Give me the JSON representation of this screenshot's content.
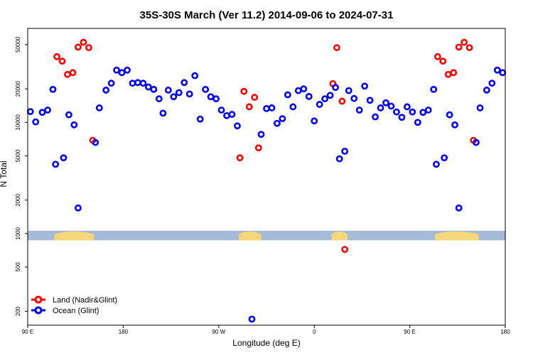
{
  "chart_data": {
    "type": "scatter",
    "title": "35S-30S March (Ver 11.2)   2014-09-06 to 2024-07-31",
    "xlabel": "Longitude (deg E)",
    "ylabel": "N Total",
    "y_scale": "log",
    "xlim": [
      0,
      360
    ],
    "ylim": [
      150,
      70000
    ],
    "x_ticks": [
      {
        "x": 0,
        "label": "90 E"
      },
      {
        "x": 72,
        "label": "180"
      },
      {
        "x": 144,
        "label": "90 W"
      },
      {
        "x": 216,
        "label": "0"
      },
      {
        "x": 288,
        "label": "90 E"
      },
      {
        "x": 360,
        "label": "180"
      }
    ],
    "y_ticks": [
      {
        "y": 200,
        "label": "200"
      },
      {
        "y": 500,
        "label": "500"
      },
      {
        "y": 1000,
        "label": "1000"
      },
      {
        "y": 2000,
        "label": "2000"
      },
      {
        "y": 5000,
        "label": "5000"
      },
      {
        "y": 10000,
        "label": "10000"
      },
      {
        "y": 20000,
        "label": "20000"
      },
      {
        "y": 50000,
        "label": "50000"
      }
    ],
    "map_strip": {
      "y_range": [
        870,
        1060
      ],
      "ocean_color": "#a4bad6",
      "land_color": "#f5d67a",
      "land_segments": [
        [
          20,
          50
        ],
        [
          159,
          176
        ],
        [
          229,
          241
        ],
        [
          307,
          340
        ]
      ]
    },
    "legend": {
      "position": "bottom-left",
      "entries": [
        {
          "label": "Land (Nadir&Glint)",
          "color": "#ff0000"
        },
        {
          "label": "Ocean (Glint)",
          "color": "#0000ff"
        }
      ]
    },
    "series": [
      {
        "name": "Land (Nadir&Glint)",
        "color": "#ff0000",
        "points": [
          [
            22,
            39000
          ],
          [
            26,
            35500
          ],
          [
            30,
            27000
          ],
          [
            34,
            28000
          ],
          [
            38,
            47500
          ],
          [
            42,
            52500
          ],
          [
            46,
            47000
          ],
          [
            49,
            6900
          ],
          [
            160,
            4800
          ],
          [
            163,
            19000
          ],
          [
            167,
            13800
          ],
          [
            171,
            16800
          ],
          [
            174,
            5900
          ],
          [
            230,
            22300
          ],
          [
            233,
            47000
          ],
          [
            237,
            15500
          ],
          [
            239,
            720
          ],
          [
            309,
            39000
          ],
          [
            313,
            35500
          ],
          [
            317,
            27000
          ],
          [
            321,
            28000
          ],
          [
            325,
            47500
          ],
          [
            329,
            52500
          ],
          [
            333,
            47000
          ],
          [
            336,
            6900
          ]
        ]
      },
      {
        "name": "Ocean (Glint)",
        "color": "#0000ff",
        "points": [
          [
            2,
            12500
          ],
          [
            6,
            10100
          ],
          [
            11,
            12300
          ],
          [
            15,
            12900
          ],
          [
            19,
            19800
          ],
          [
            21,
            4200
          ],
          [
            27,
            4800
          ],
          [
            31,
            11700
          ],
          [
            35,
            9500
          ],
          [
            38,
            1700
          ],
          [
            51,
            6600
          ],
          [
            54,
            13500
          ],
          [
            59,
            19500
          ],
          [
            63,
            22500
          ],
          [
            67,
            29500
          ],
          [
            71,
            28000
          ],
          [
            75,
            29500
          ],
          [
            79,
            22500
          ],
          [
            83,
            22800
          ],
          [
            87,
            22500
          ],
          [
            91,
            20800
          ],
          [
            95,
            19800
          ],
          [
            99,
            16300
          ],
          [
            102,
            12100
          ],
          [
            106,
            19500
          ],
          [
            110,
            17000
          ],
          [
            114,
            18500
          ],
          [
            118,
            22800
          ],
          [
            122,
            18000
          ],
          [
            126,
            26300
          ],
          [
            130,
            10700
          ],
          [
            134,
            19800
          ],
          [
            138,
            17000
          ],
          [
            142,
            16300
          ],
          [
            146,
            12900
          ],
          [
            150,
            11500
          ],
          [
            154,
            11800
          ],
          [
            158,
            9300
          ],
          [
            169,
            170
          ],
          [
            176,
            7800
          ],
          [
            180,
            13300
          ],
          [
            184,
            13500
          ],
          [
            188,
            9800
          ],
          [
            192,
            10800
          ],
          [
            196,
            17700
          ],
          [
            200,
            13800
          ],
          [
            204,
            19300
          ],
          [
            208,
            20000
          ],
          [
            212,
            17100
          ],
          [
            216,
            10300
          ],
          [
            220,
            14500
          ],
          [
            224,
            16300
          ],
          [
            228,
            17500
          ],
          [
            232,
            20600
          ],
          [
            235,
            4700
          ],
          [
            239,
            5500
          ],
          [
            242,
            19300
          ],
          [
            246,
            16400
          ],
          [
            250,
            12900
          ],
          [
            254,
            21200
          ],
          [
            258,
            15800
          ],
          [
            262,
            11200
          ],
          [
            266,
            13500
          ],
          [
            270,
            15000
          ],
          [
            274,
            14000
          ],
          [
            278,
            12400
          ],
          [
            282,
            11100
          ],
          [
            286,
            13800
          ],
          [
            290,
            12400
          ],
          [
            294,
            10000
          ],
          [
            298,
            12300
          ],
          [
            302,
            12900
          ],
          [
            306,
            19800
          ],
          [
            308,
            4200
          ],
          [
            314,
            4800
          ],
          [
            318,
            11700
          ],
          [
            322,
            9500
          ],
          [
            325,
            1700
          ],
          [
            338,
            6600
          ],
          [
            341,
            13500
          ],
          [
            346,
            19500
          ],
          [
            350,
            22500
          ],
          [
            354,
            29500
          ],
          [
            358,
            28000
          ]
        ]
      }
    ]
  }
}
